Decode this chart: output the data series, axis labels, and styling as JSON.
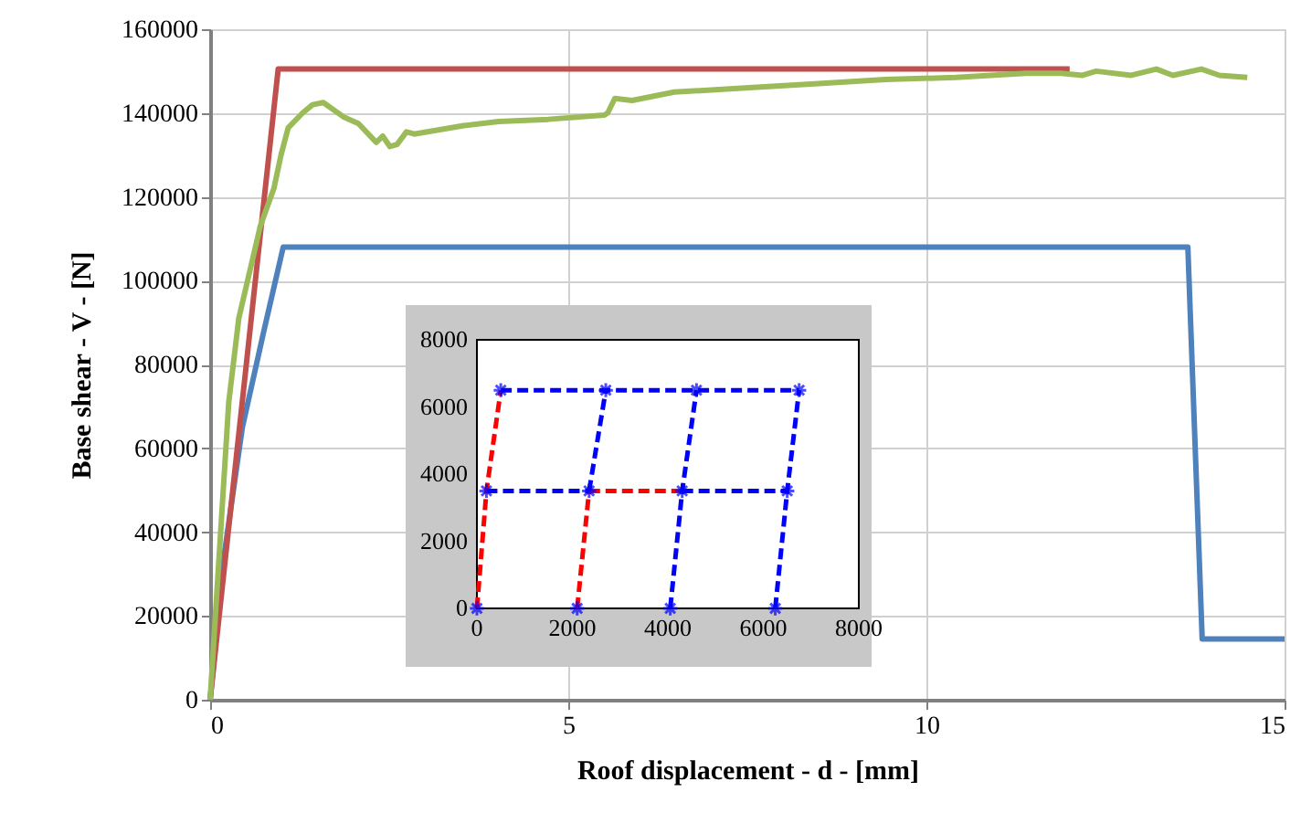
{
  "chart_data": [
    {
      "type": "line",
      "xlabel": "Roof displacement - d - [mm]",
      "ylabel": "Base shear - V - [N]",
      "xlim": [
        0,
        15
      ],
      "xticks": [
        0,
        5,
        10,
        15
      ],
      "ylim": [
        0,
        160000
      ],
      "yticks": [
        0,
        20000,
        40000,
        60000,
        80000,
        100000,
        120000,
        140000,
        160000
      ],
      "grid": true,
      "series": [
        {
          "color": "#4f81bd",
          "x": [
            0,
            0.2,
            0.45,
            0.75,
            1.02,
            13.65,
            13.85,
            15
          ],
          "values": [
            0,
            35000,
            65000,
            88000,
            108000,
            108000,
            14500,
            14500
          ]
        },
        {
          "color": "#c0504d",
          "x": [
            0,
            0.95,
            12
          ],
          "values": [
            0,
            150500,
            150500
          ]
        },
        {
          "color": "#9bbb59",
          "x": [
            0,
            0.26,
            0.4,
            0.7,
            0.89,
            0.99,
            1.09,
            1.29,
            1.43,
            1.58,
            1.87,
            2.07,
            2.32,
            2.41,
            2.51,
            2.61,
            2.74,
            2.85,
            3.54,
            4.03,
            4.72,
            5.5,
            5.55,
            5.65,
            5.89,
            6.48,
            7.47,
            8.44,
            9.43,
            10.41,
            11.39,
            11.88,
            12.18,
            12.37,
            12.86,
            13.21,
            13.44,
            13.84,
            14.09,
            14.48
          ],
          "values": [
            0,
            71000,
            91000,
            113000,
            122000,
            130000,
            136500,
            140000,
            142000,
            142500,
            139000,
            137500,
            133000,
            134500,
            132000,
            132500,
            135500,
            135000,
            137000,
            138000,
            138500,
            139500,
            140000,
            143500,
            143000,
            145000,
            146000,
            147000,
            148000,
            148500,
            149500,
            149500,
            149000,
            150000,
            149000,
            150500,
            149000,
            150500,
            149000,
            148500
          ]
        }
      ]
    },
    {
      "type": "line",
      "xlim": [
        0,
        8000
      ],
      "xticks": [
        0,
        2000,
        4000,
        6000,
        8000
      ],
      "ylim": [
        0,
        8000
      ],
      "yticks": [
        0,
        2000,
        4000,
        6000,
        8000
      ],
      "series": [
        {
          "color": "#ff0000",
          "line_style": "dashed",
          "x": [
            0,
            200,
            500
          ],
          "values": [
            0,
            3500,
            6500
          ]
        },
        {
          "color": "#ff0000",
          "line_style": "dashed",
          "x": [
            2100,
            2350
          ],
          "values": [
            0,
            3500
          ]
        },
        {
          "color": "#ff0000",
          "line_style": "dashed",
          "x": [
            2350,
            4300
          ],
          "values": [
            3500,
            3500
          ]
        },
        {
          "color": "#0000ff",
          "line_style": "dashed",
          "x": [
            200,
            2350
          ],
          "values": [
            3500,
            3500
          ]
        },
        {
          "color": "#0000ff",
          "line_style": "dashed",
          "x": [
            4300,
            6500
          ],
          "values": [
            3500,
            3500
          ]
        },
        {
          "color": "#0000ff",
          "line_style": "dashed",
          "x": [
            500,
            2700,
            4600,
            6750
          ],
          "values": [
            6500,
            6500,
            6500,
            6500
          ]
        },
        {
          "color": "#0000ff",
          "line_style": "dashed",
          "x": [
            2350,
            2700
          ],
          "values": [
            3500,
            6500
          ]
        },
        {
          "color": "#0000ff",
          "line_style": "dashed",
          "x": [
            4050,
            4300,
            4600
          ],
          "values": [
            0,
            3500,
            6500
          ]
        },
        {
          "color": "#0000ff",
          "line_style": "dashed",
          "x": [
            6250,
            6500,
            6750
          ],
          "values": [
            0,
            3500,
            6500
          ]
        },
        {
          "type": "scatter",
          "marker": "cross",
          "color": "#0000ff",
          "x": [
            0,
            200,
            500,
            2100,
            2350,
            2700,
            4050,
            4300,
            4600,
            6250,
            6500,
            6750
          ],
          "values": [
            0,
            3500,
            6500,
            0,
            3500,
            6500,
            0,
            3500,
            6500,
            0,
            3500,
            6500
          ]
        }
      ]
    }
  ]
}
